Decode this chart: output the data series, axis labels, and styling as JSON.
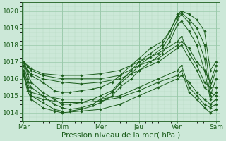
{
  "xlabel": "Pression niveau de la mer( hPa )",
  "bg_color": "#cce8d8",
  "plot_bg_color": "#cce8d8",
  "line_color": "#1a5c1a",
  "grid_color_major": "#99c9aa",
  "grid_color_minor": "#b0d8bc",
  "ylim": [
    1013.5,
    1020.5
  ],
  "yticks": [
    1014,
    1015,
    1016,
    1017,
    1018,
    1019,
    1020
  ],
  "day_labels": [
    "Mar",
    "Dim",
    "Mer",
    "Jeu",
    "Ven",
    "Sam"
  ],
  "day_positions": [
    0,
    1,
    2,
    3,
    4,
    5
  ],
  "xlim": [
    -0.05,
    5.1
  ],
  "lines": [
    {
      "x": [
        0.0,
        0.1,
        0.2,
        0.5,
        0.8,
        1.0,
        1.2,
        1.5,
        1.8,
        2.0,
        2.3,
        2.5,
        2.8,
        3.0,
        3.3,
        3.6,
        3.8,
        4.0,
        4.1,
        4.3,
        4.5,
        4.7,
        4.85,
        5.0
      ],
      "y": [
        1017.0,
        1016.5,
        1016.2,
        1015.8,
        1015.3,
        1015.2,
        1015.2,
        1015.3,
        1015.4,
        1015.5,
        1015.8,
        1016.2,
        1016.8,
        1017.2,
        1017.8,
        1018.2,
        1018.8,
        1019.8,
        1020.0,
        1019.8,
        1019.5,
        1018.8,
        1016.5,
        1017.0
      ]
    },
    {
      "x": [
        0.0,
        0.1,
        0.2,
        0.5,
        0.8,
        1.0,
        1.2,
        1.5,
        1.8,
        2.0,
        2.3,
        2.5,
        2.8,
        3.0,
        3.3,
        3.6,
        3.8,
        4.0,
        4.1,
        4.3,
        4.5,
        4.7,
        4.85,
        5.0
      ],
      "y": [
        1017.0,
        1016.3,
        1015.8,
        1015.2,
        1014.8,
        1014.5,
        1014.5,
        1014.6,
        1014.8,
        1015.0,
        1015.3,
        1015.8,
        1016.5,
        1017.0,
        1017.5,
        1018.0,
        1018.8,
        1019.7,
        1019.9,
        1019.5,
        1019.0,
        1018.0,
        1015.5,
        1016.5
      ]
    },
    {
      "x": [
        0.0,
        0.1,
        0.2,
        0.5,
        0.8,
        1.0,
        1.2,
        1.5,
        1.8,
        2.0,
        2.3,
        2.5,
        2.8,
        3.0,
        3.3,
        3.6,
        3.8,
        4.0,
        4.1,
        4.3,
        4.5,
        4.7,
        4.85,
        5.0
      ],
      "y": [
        1016.8,
        1016.0,
        1015.5,
        1015.0,
        1014.5,
        1014.3,
        1014.2,
        1014.3,
        1014.5,
        1014.8,
        1015.2,
        1015.7,
        1016.3,
        1016.8,
        1017.3,
        1017.8,
        1018.5,
        1019.5,
        1019.8,
        1019.3,
        1018.5,
        1017.2,
        1015.0,
        1016.0
      ]
    },
    {
      "x": [
        0.0,
        0.1,
        0.2,
        0.5,
        0.8,
        1.0,
        1.2,
        1.5,
        1.8,
        2.0,
        2.3,
        2.5,
        2.8,
        3.0,
        3.3,
        3.6,
        3.8,
        4.0,
        4.1,
        4.3,
        4.5,
        4.7,
        4.85,
        5.0
      ],
      "y": [
        1016.5,
        1015.5,
        1015.0,
        1014.6,
        1014.2,
        1014.1,
        1014.1,
        1014.2,
        1014.4,
        1014.6,
        1015.0,
        1015.5,
        1016.0,
        1016.5,
        1017.0,
        1017.5,
        1018.2,
        1019.2,
        1019.4,
        1018.8,
        1018.0,
        1016.5,
        1014.8,
        1015.2
      ]
    },
    {
      "x": [
        0.0,
        0.1,
        0.2,
        0.5,
        0.8,
        1.0,
        1.5,
        2.0,
        2.5,
        3.0,
        3.5,
        4.0,
        4.1,
        4.3,
        4.5,
        4.7,
        4.85,
        5.0
      ],
      "y": [
        1016.2,
        1015.3,
        1014.8,
        1014.3,
        1014.1,
        1014.0,
        1014.1,
        1014.2,
        1014.5,
        1015.0,
        1015.5,
        1016.0,
        1016.2,
        1015.8,
        1015.2,
        1014.8,
        1014.5,
        1014.8
      ]
    },
    {
      "x": [
        0.0,
        0.1,
        0.2,
        0.5,
        1.0,
        1.5,
        2.0,
        2.5,
        3.0,
        3.5,
        4.0,
        4.1,
        4.3,
        4.5,
        4.7,
        4.85,
        5.0
      ],
      "y": [
        1016.8,
        1016.5,
        1016.3,
        1016.0,
        1015.8,
        1015.7,
        1015.8,
        1016.0,
        1016.5,
        1017.0,
        1017.8,
        1018.0,
        1017.2,
        1016.5,
        1015.5,
        1015.2,
        1015.0
      ]
    },
    {
      "x": [
        0.0,
        0.1,
        0.2,
        0.5,
        1.0,
        1.5,
        2.0,
        2.5,
        3.0,
        3.5,
        4.0,
        4.1,
        4.3,
        4.5,
        4.7,
        4.85,
        5.0
      ],
      "y": [
        1017.0,
        1016.8,
        1016.6,
        1016.3,
        1016.2,
        1016.2,
        1016.3,
        1016.5,
        1017.0,
        1017.5,
        1018.2,
        1018.5,
        1017.5,
        1016.8,
        1015.8,
        1015.5,
        1015.5
      ]
    },
    {
      "x": [
        0.0,
        0.1,
        0.2,
        0.5,
        1.0,
        1.5,
        2.0,
        2.5,
        3.0,
        3.5,
        4.0,
        4.1,
        4.3,
        4.5,
        4.7,
        4.85,
        5.0
      ],
      "y": [
        1017.0,
        1016.7,
        1016.5,
        1016.2,
        1016.0,
        1016.0,
        1016.0,
        1016.2,
        1016.8,
        1017.2,
        1018.0,
        1018.2,
        1017.8,
        1017.0,
        1016.5,
        1015.8,
        1016.8
      ]
    },
    {
      "x": [
        0.0,
        0.1,
        0.2,
        0.5,
        1.0,
        1.5,
        2.0,
        2.5,
        3.0,
        3.5,
        4.0,
        4.1,
        4.3,
        4.5,
        4.7,
        4.85,
        5.0
      ],
      "y": [
        1016.5,
        1015.8,
        1015.2,
        1015.0,
        1014.8,
        1014.8,
        1014.8,
        1015.0,
        1015.5,
        1016.0,
        1016.5,
        1016.8,
        1015.5,
        1015.0,
        1014.5,
        1014.3,
        1014.5
      ]
    },
    {
      "x": [
        0.0,
        0.1,
        0.2,
        0.5,
        1.0,
        1.5,
        2.0,
        2.5,
        3.0,
        3.5,
        4.0,
        4.1,
        4.3,
        4.5,
        4.7,
        4.85,
        5.0
      ],
      "y": [
        1016.3,
        1015.5,
        1015.0,
        1014.8,
        1014.6,
        1014.6,
        1014.7,
        1014.9,
        1015.3,
        1015.8,
        1016.2,
        1016.5,
        1015.2,
        1014.8,
        1014.3,
        1014.0,
        1014.2
      ]
    }
  ],
  "marker": "D",
  "markersize": 1.8,
  "linewidth": 0.7,
  "xlabel_fontsize": 7.5,
  "ytick_fontsize": 6.5,
  "xtick_fontsize": 6.5
}
